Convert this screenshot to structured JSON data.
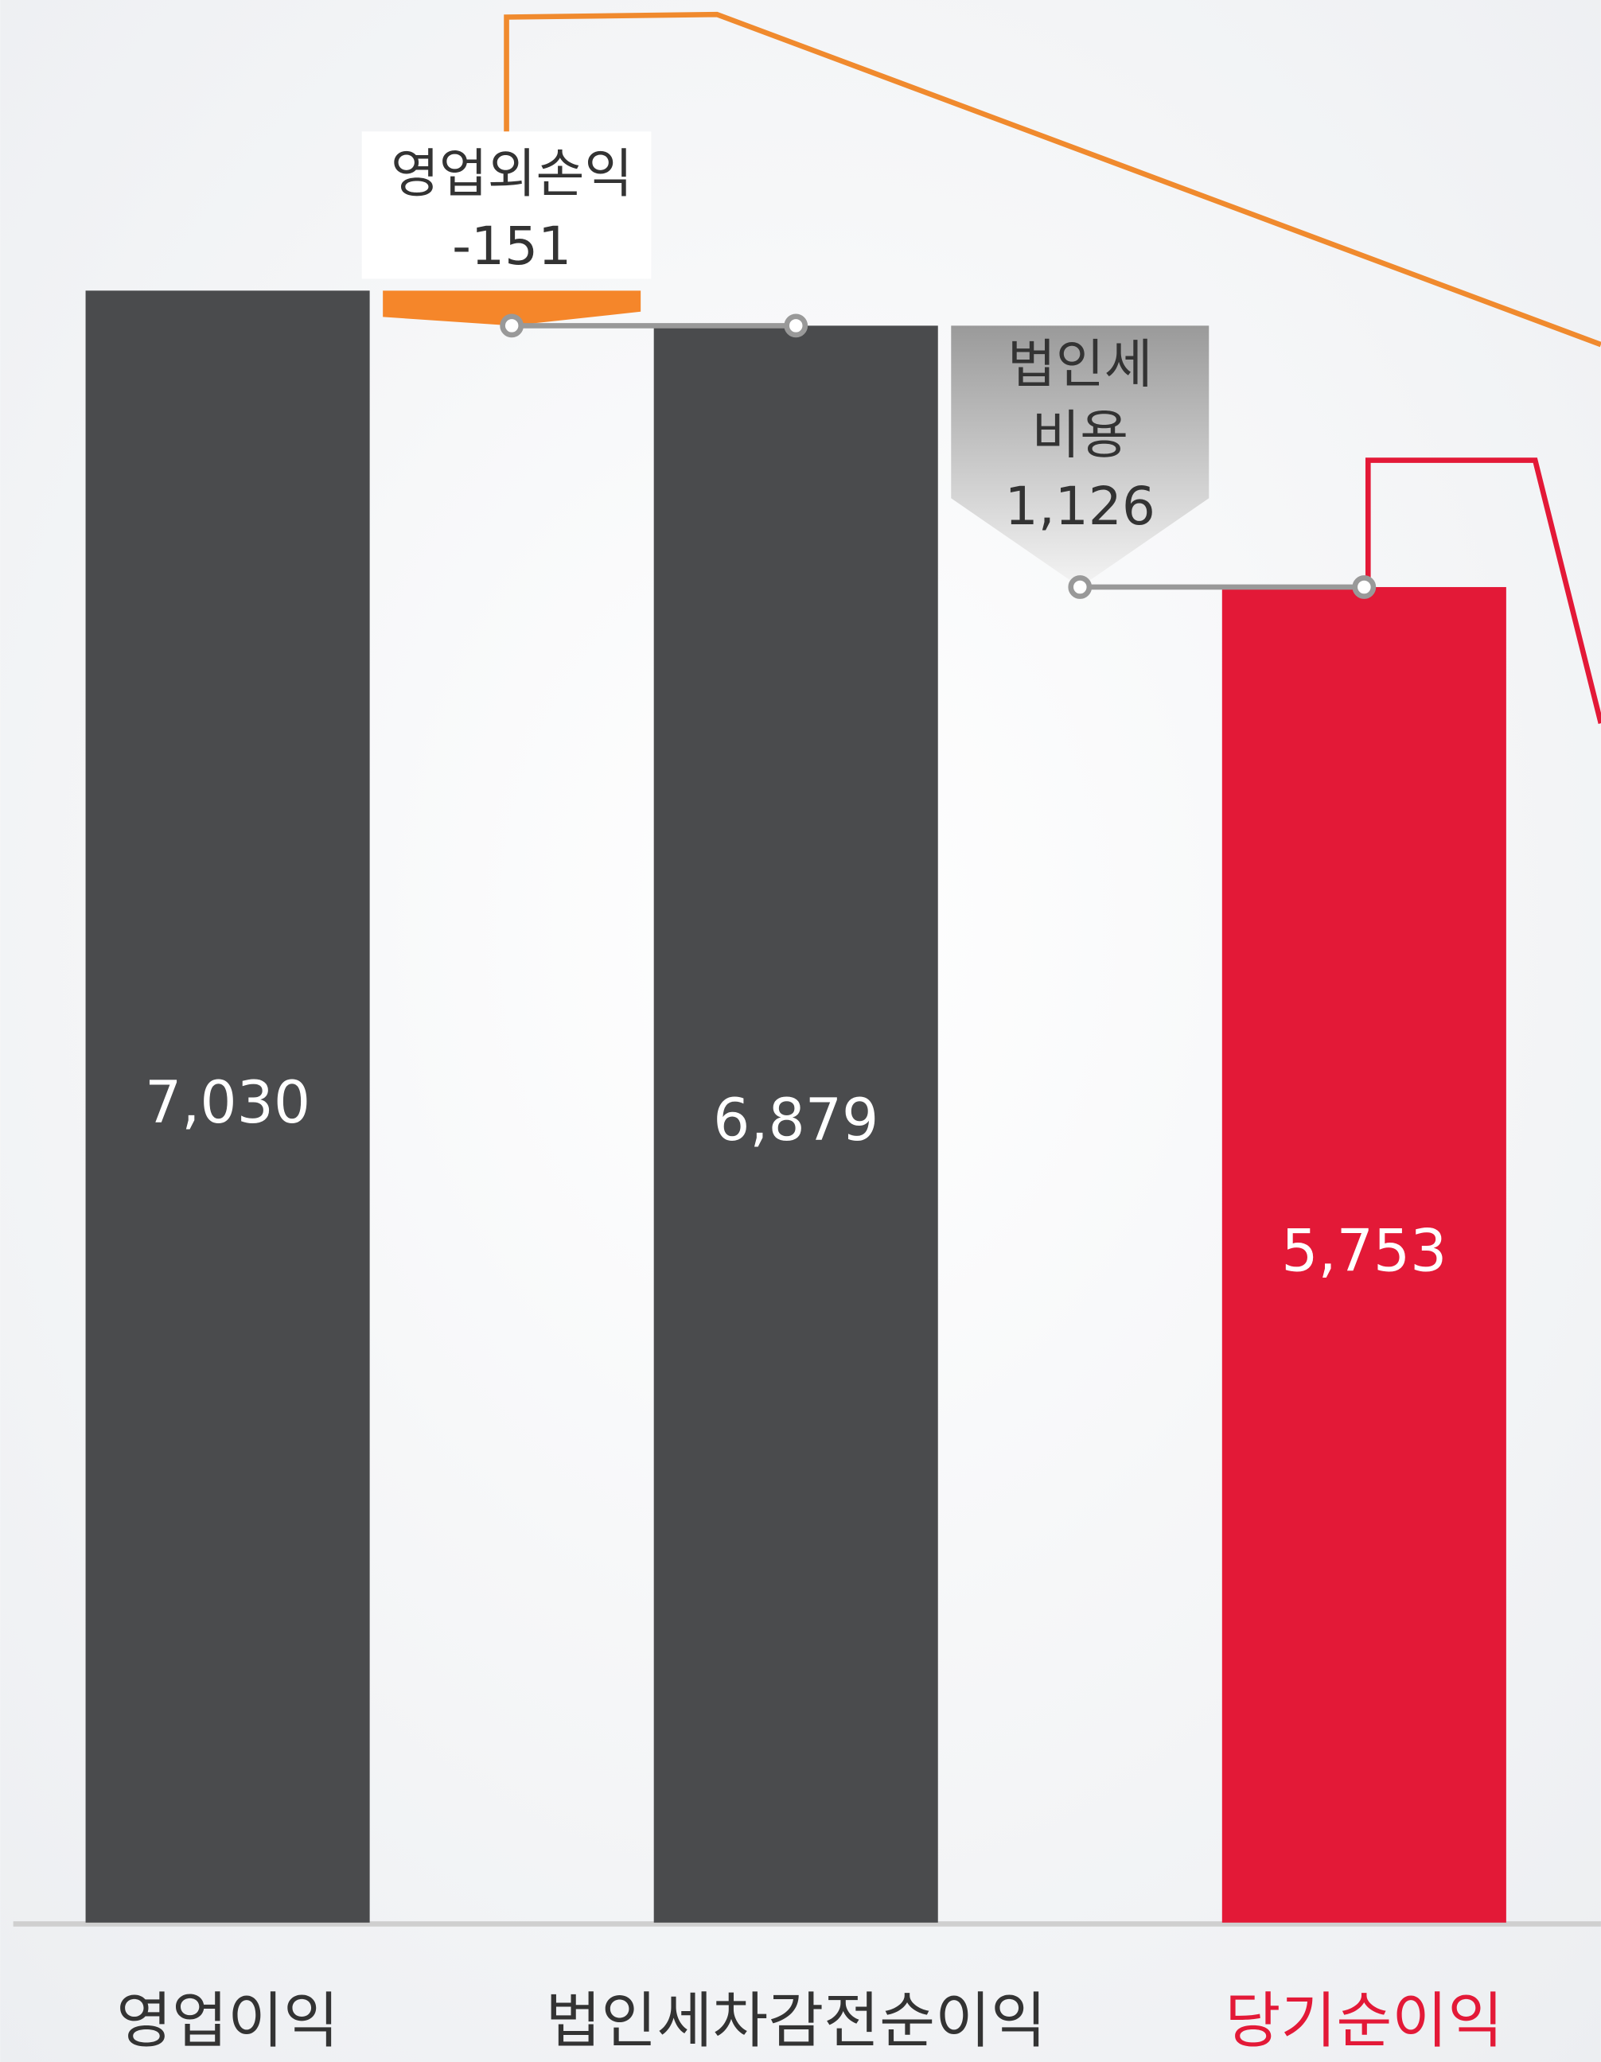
{
  "chart_data": {
    "type": "waterfall",
    "totals": {
      "categories": [
        "영업이익",
        "법인세차감전순이익",
        "당기순이익"
      ],
      "values": [
        7030,
        6879,
        5753
      ],
      "value_labels": [
        "7,030",
        "6,879",
        "5,753"
      ],
      "colors": [
        "#4a4b4d",
        "#4a4b4d",
        "#e31937"
      ]
    },
    "steps": [
      {
        "label_lines": [
          "영업외손익"
        ],
        "value": -151,
        "color": "#f5862a"
      },
      {
        "label_lines": [
          "법인세",
          "비용"
        ],
        "value": 1126,
        "value_label": "1,126",
        "color": "#aaaaaa"
      }
    ]
  }
}
